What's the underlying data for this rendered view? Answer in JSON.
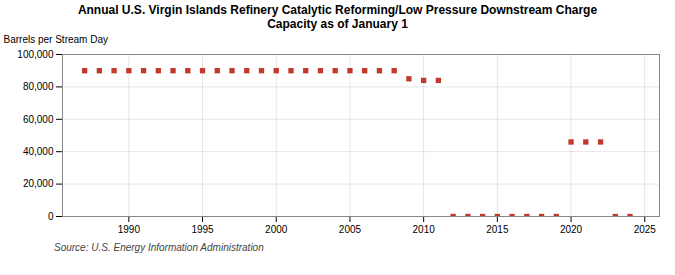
{
  "chart_data": {
    "type": "scatter",
    "title": "Annual U.S. Virgin Islands Refinery Catalytic Reforming/Low Pressure Downstream Charge\nCapacity as of January 1",
    "ylabel": "Barrels per Stream Day",
    "source": "Source: U.S. Energy Information Administration",
    "x": [
      1987,
      1988,
      1989,
      1990,
      1991,
      1992,
      1993,
      1994,
      1995,
      1996,
      1997,
      1998,
      1999,
      2000,
      2001,
      2002,
      2003,
      2004,
      2005,
      2006,
      2007,
      2008,
      2009,
      2010,
      2011,
      2012,
      2013,
      2014,
      2015,
      2016,
      2017,
      2018,
      2019,
      2020,
      2021,
      2022,
      2023,
      2024
    ],
    "values": [
      90000,
      90000,
      90000,
      90000,
      90000,
      90000,
      90000,
      90000,
      90000,
      90000,
      90000,
      90000,
      90000,
      90000,
      90000,
      90000,
      90000,
      90000,
      90000,
      90000,
      90000,
      90000,
      85000,
      84000,
      84000,
      0,
      0,
      0,
      0,
      0,
      0,
      0,
      0,
      46000,
      46000,
      46000,
      0,
      0
    ],
    "color": "#c0392b",
    "marker": "square",
    "xlim": [
      1985.5,
      2026
    ],
    "ylim": [
      0,
      100000
    ],
    "xticks": [
      1990,
      1995,
      2000,
      2005,
      2010,
      2015,
      2020,
      2025
    ],
    "yticks": [
      0,
      {
        "value": 20000,
        "label": "20,000"
      },
      {
        "value": 40000,
        "label": "40,000"
      },
      {
        "value": 60000,
        "label": "60,000"
      },
      {
        "value": 80000,
        "label": "80,000"
      },
      {
        "value": 100000,
        "label": "100,000"
      }
    ],
    "grid": true
  }
}
